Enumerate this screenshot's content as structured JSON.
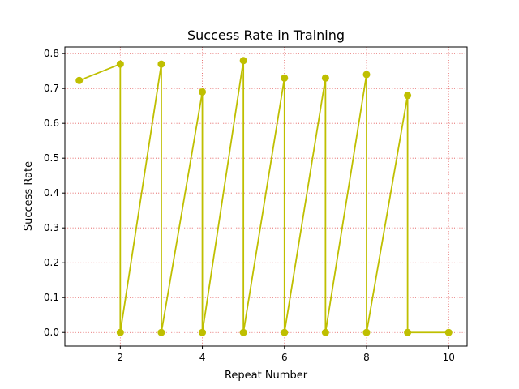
{
  "chart_data": {
    "type": "line",
    "title": "Success Rate in Training",
    "xlabel": "Repeat Number",
    "ylabel": "Success Rate",
    "xlim": [
      0.65,
      10.45
    ],
    "ylim": [
      -0.039,
      0.819
    ],
    "xticks": [
      2,
      4,
      6,
      8,
      10
    ],
    "yticks": [
      0.0,
      0.1,
      0.2,
      0.3,
      0.4,
      0.5,
      0.6,
      0.7,
      0.8
    ],
    "ytick_labels": [
      "0.0",
      "0.1",
      "0.2",
      "0.3",
      "0.4",
      "0.5",
      "0.6",
      "0.7",
      "0.8"
    ],
    "xtick_labels": [
      "2",
      "4",
      "6",
      "8",
      "10"
    ],
    "grid": true,
    "line_color": "#bfbf00",
    "grid_color": "#e05050",
    "marker": "circle",
    "x": [
      1,
      2,
      2,
      3,
      3,
      4,
      4,
      5,
      5,
      6,
      6,
      7,
      7,
      8,
      8,
      9,
      9,
      10
    ],
    "y": [
      0.723,
      0.77,
      0.0,
      0.77,
      0.0,
      0.69,
      0.0,
      0.78,
      0.0,
      0.73,
      0.0,
      0.73,
      0.0,
      0.74,
      0.0,
      0.68,
      0.0,
      0.0
    ],
    "series": [
      {
        "x": [
          1,
          2,
          3,
          4,
          5,
          6,
          7,
          8,
          9,
          10
        ],
        "y": [
          0.723,
          0.77,
          0.0,
          0.0,
          0.0,
          0.0,
          0.0,
          0.0,
          0.0,
          0.0
        ]
      },
      {
        "x": [
          1,
          2,
          3,
          4,
          5,
          6,
          7,
          8,
          9,
          10
        ],
        "y": [
          0.723,
          0.77,
          0.77,
          0.0,
          0.0,
          0.0,
          0.0,
          0.0,
          0.0,
          0.0
        ]
      },
      {
        "x": [
          1,
          2,
          3,
          4,
          5,
          6,
          7,
          8,
          9,
          10
        ],
        "y": [
          0.723,
          0.77,
          0.77,
          0.69,
          0.0,
          0.0,
          0.0,
          0.0,
          0.0,
          0.0
        ]
      },
      {
        "x": [
          1,
          2,
          3,
          4,
          5,
          6,
          7,
          8,
          9,
          10
        ],
        "y": [
          0.723,
          0.77,
          0.77,
          0.69,
          0.78,
          0.0,
          0.0,
          0.0,
          0.0,
          0.0
        ]
      },
      {
        "x": [
          1,
          2,
          3,
          4,
          5,
          6,
          7,
          8,
          9,
          10
        ],
        "y": [
          0.723,
          0.77,
          0.77,
          0.69,
          0.78,
          0.73,
          0.0,
          0.0,
          0.0,
          0.0
        ]
      },
      {
        "x": [
          1,
          2,
          3,
          4,
          5,
          6,
          7,
          8,
          9,
          10
        ],
        "y": [
          0.723,
          0.77,
          0.77,
          0.69,
          0.78,
          0.73,
          0.73,
          0.0,
          0.0,
          0.0
        ]
      },
      {
        "x": [
          1,
          2,
          3,
          4,
          5,
          6,
          7,
          8,
          9,
          10
        ],
        "y": [
          0.723,
          0.77,
          0.77,
          0.69,
          0.78,
          0.73,
          0.73,
          0.74,
          0.0,
          0.0
        ]
      },
      {
        "x": [
          1,
          2,
          3,
          4,
          5,
          6,
          7,
          8,
          9,
          10
        ],
        "y": [
          0.723,
          0.77,
          0.77,
          0.69,
          0.78,
          0.73,
          0.73,
          0.74,
          0.68,
          0.0
        ]
      }
    ]
  }
}
